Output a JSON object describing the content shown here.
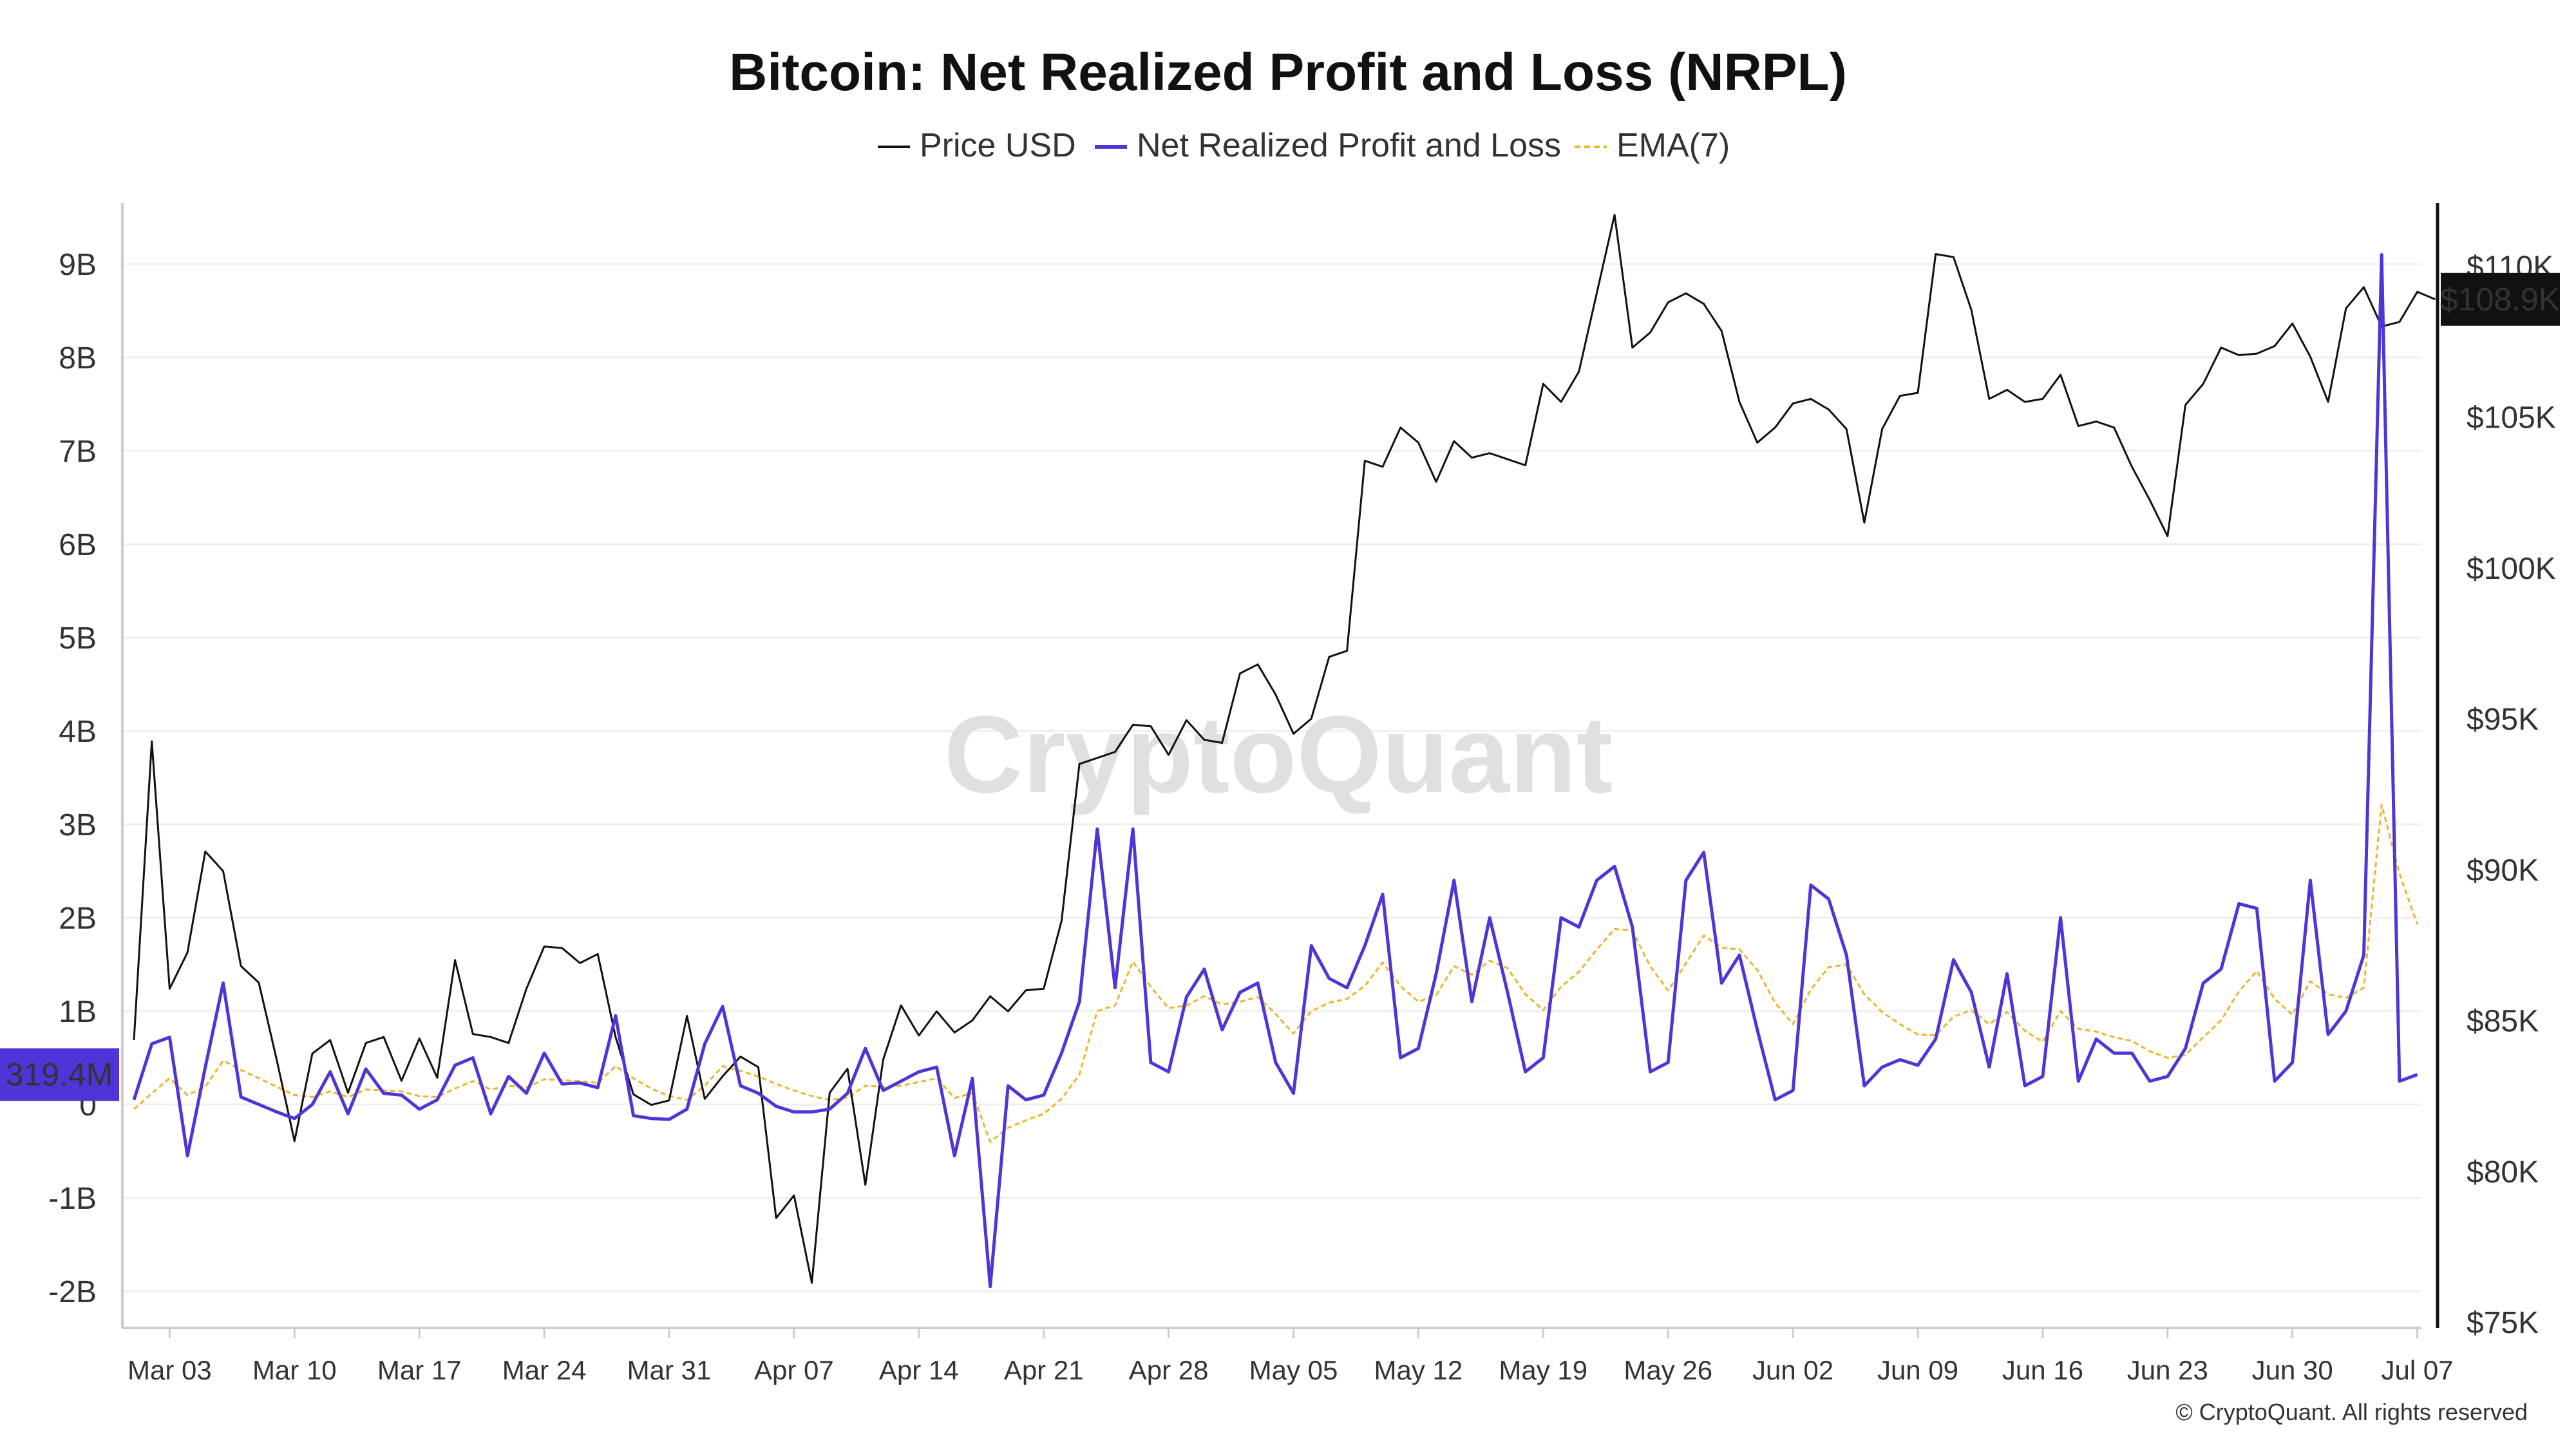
{
  "chart_data": {
    "type": "line",
    "title": "Bitcoin: Net Realized Profit and Loss (NRPL)",
    "legend": {
      "placement": "top-center",
      "items": [
        {
          "label": "Price USD",
          "color": "#111111",
          "style": "solid"
        },
        {
          "label": "Net Realized Profit and Loss",
          "color": "#4f35d8",
          "style": "solid"
        },
        {
          "label": "EMA(7)",
          "color": "#f0b429",
          "style": "dashed"
        }
      ]
    },
    "x_axis": {
      "ticks": [
        "Mar 03",
        "Mar 10",
        "Mar 17",
        "Mar 24",
        "Mar 31",
        "Apr 07",
        "Apr 14",
        "Apr 21",
        "Apr 28",
        "May 05",
        "May 12",
        "May 19",
        "May 26",
        "Jun 02",
        "Jun 09",
        "Jun 16",
        "Jun 23",
        "Jun 30",
        "Jul 07"
      ],
      "first_day_label": "Mar 01"
    },
    "y_left": {
      "unit": "USD",
      "ylim": [
        -2.5,
        9.5
      ],
      "ticks": [
        {
          "v": 9,
          "label": "9B"
        },
        {
          "v": 8,
          "label": "8B"
        },
        {
          "v": 7,
          "label": "7B"
        },
        {
          "v": 6,
          "label": "6B"
        },
        {
          "v": 5,
          "label": "5B"
        },
        {
          "v": 4,
          "label": "4B"
        },
        {
          "v": 3,
          "label": "3B"
        },
        {
          "v": 2,
          "label": "2B"
        },
        {
          "v": 1,
          "label": "1B"
        },
        {
          "v": 0,
          "label": "0"
        },
        {
          "v": -1,
          "label": "-1B"
        },
        {
          "v": -2,
          "label": "-2B"
        }
      ]
    },
    "y_right": {
      "unit": "USD",
      "ylim": [
        75000,
        112500
      ],
      "ticks": [
        {
          "v": 110000,
          "label": "$110K"
        },
        {
          "v": 105000,
          "label": "$105K"
        },
        {
          "v": 100000,
          "label": "$100K"
        },
        {
          "v": 95000,
          "label": "$95K"
        },
        {
          "v": 90000,
          "label": "$90K"
        },
        {
          "v": 85000,
          "label": "$85K"
        },
        {
          "v": 80000,
          "label": "$80K"
        },
        {
          "v": 75000,
          "label": "$75K"
        }
      ]
    },
    "grid": true,
    "current_labels": {
      "price": "$108.9K",
      "nrpl": "319.4M",
      "price_value": 108900,
      "nrpl_value": 0.319
    },
    "watermark": "CryptoQuant",
    "footer": "© CryptoQuant. All rights reserved",
    "series": [
      {
        "name": "Price USD",
        "axis": "right",
        "color": "#111111",
        "values": [
          84350,
          94250,
          86050,
          87250,
          90600,
          89950,
          86800,
          86250,
          83700,
          81000,
          83900,
          84350,
          82600,
          84250,
          84450,
          83000,
          84400,
          83100,
          87000,
          84550,
          84450,
          84250,
          86050,
          87450,
          87400,
          86900,
          87200,
          84450,
          82550,
          82200,
          82350,
          85150,
          82400,
          83150,
          83800,
          83450,
          78450,
          79200,
          76300,
          82600,
          83400,
          79550,
          83700,
          85500,
          84500,
          85300,
          84600,
          85000,
          85800,
          85300,
          86000,
          86050,
          88300,
          93500,
          93700,
          93900,
          94800,
          94750,
          93800,
          94950,
          94300,
          94200,
          96500,
          96800,
          95800,
          94500,
          95000,
          97050,
          97250,
          103550,
          103350,
          104650,
          104150,
          102850,
          104200,
          103650,
          103800,
          103600,
          103400,
          106100,
          105500,
          106500,
          109100,
          111700,
          107300,
          107800,
          108800,
          109100,
          108750,
          107850,
          105500,
          104150,
          104650,
          105450,
          105600,
          105250,
          104600,
          101500,
          104600,
          105700,
          105800,
          110400,
          110300,
          108550,
          105600,
          105900,
          105500,
          105600,
          106400,
          104700,
          104850,
          104650,
          103350,
          102250,
          101050,
          105400,
          106100,
          107300,
          107050,
          107100,
          107350,
          108100,
          107000,
          105500,
          108600,
          109300,
          108000,
          108150,
          109150,
          108900
        ]
      },
      {
        "name": "Net Realized Profit and Loss",
        "axis": "left",
        "unit": "billions",
        "color": "#4f35d8",
        "values": [
          0.05,
          0.65,
          0.72,
          -0.55,
          0.4,
          1.3,
          0.08,
          0.0,
          -0.08,
          -0.15,
          0.0,
          0.35,
          -0.1,
          0.38,
          0.12,
          0.1,
          -0.05,
          0.05,
          0.42,
          0.5,
          -0.1,
          0.3,
          0.12,
          0.55,
          0.22,
          0.23,
          0.18,
          0.95,
          -0.12,
          -0.15,
          -0.16,
          -0.05,
          0.65,
          1.05,
          0.2,
          0.12,
          -0.02,
          -0.08,
          -0.08,
          -0.05,
          0.12,
          0.6,
          0.15,
          0.25,
          0.35,
          0.4,
          -0.55,
          0.28,
          -1.95,
          0.2,
          0.05,
          0.1,
          0.55,
          1.1,
          2.95,
          1.25,
          2.95,
          0.45,
          0.35,
          1.15,
          1.45,
          0.8,
          1.2,
          1.3,
          0.45,
          0.12,
          1.7,
          1.35,
          1.25,
          1.7,
          2.25,
          0.5,
          0.6,
          1.4,
          2.4,
          1.1,
          2.0,
          1.2,
          0.35,
          0.5,
          2.0,
          1.9,
          2.4,
          2.55,
          1.9,
          0.35,
          0.45,
          2.4,
          2.7,
          1.3,
          1.6,
          0.8,
          0.05,
          0.15,
          2.35,
          2.2,
          1.6,
          0.2,
          0.4,
          0.48,
          0.42,
          0.7,
          1.55,
          1.2,
          0.4,
          1.4,
          0.2,
          0.3,
          2.0,
          0.25,
          0.7,
          0.55,
          0.55,
          0.25,
          0.3,
          0.6,
          1.3,
          1.45,
          2.15,
          2.1,
          0.25,
          0.45,
          2.4,
          0.75,
          1.0,
          1.6,
          9.1,
          0.25,
          0.32
        ]
      },
      {
        "name": "EMA(7)",
        "axis": "left",
        "unit": "billions",
        "color": "#f0b429",
        "values": [
          -0.05,
          0.12,
          0.28,
          0.1,
          0.19,
          0.47,
          0.37,
          0.28,
          0.19,
          0.1,
          0.08,
          0.14,
          0.08,
          0.16,
          0.15,
          0.14,
          0.09,
          0.08,
          0.17,
          0.25,
          0.16,
          0.2,
          0.18,
          0.27,
          0.26,
          0.25,
          0.23,
          0.41,
          0.28,
          0.17,
          0.09,
          0.05,
          0.2,
          0.41,
          0.36,
          0.3,
          0.22,
          0.15,
          0.09,
          0.05,
          0.07,
          0.2,
          0.19,
          0.2,
          0.24,
          0.28,
          0.07,
          0.12,
          -0.4,
          -0.25,
          -0.17,
          -0.1,
          0.06,
          0.32,
          1.0,
          1.06,
          1.53,
          1.26,
          1.03,
          1.06,
          1.16,
          1.07,
          1.1,
          1.15,
          0.97,
          0.76,
          1.0,
          1.09,
          1.13,
          1.27,
          1.52,
          1.27,
          1.1,
          1.17,
          1.48,
          1.39,
          1.54,
          1.46,
          1.18,
          1.01,
          1.26,
          1.42,
          1.66,
          1.88,
          1.86,
          1.48,
          1.22,
          1.51,
          1.81,
          1.68,
          1.66,
          1.44,
          1.09,
          0.86,
          1.23,
          1.47,
          1.5,
          1.18,
          0.99,
          0.86,
          0.75,
          0.74,
          0.94,
          1.01,
          0.86,
          0.99,
          0.79,
          0.67,
          1.0,
          0.81,
          0.78,
          0.72,
          0.68,
          0.57,
          0.5,
          0.53,
          0.72,
          0.9,
          1.21,
          1.43,
          1.13,
          0.96,
          1.32,
          1.18,
          1.14,
          1.25,
          3.21,
          2.47,
          1.93
        ]
      }
    ]
  }
}
